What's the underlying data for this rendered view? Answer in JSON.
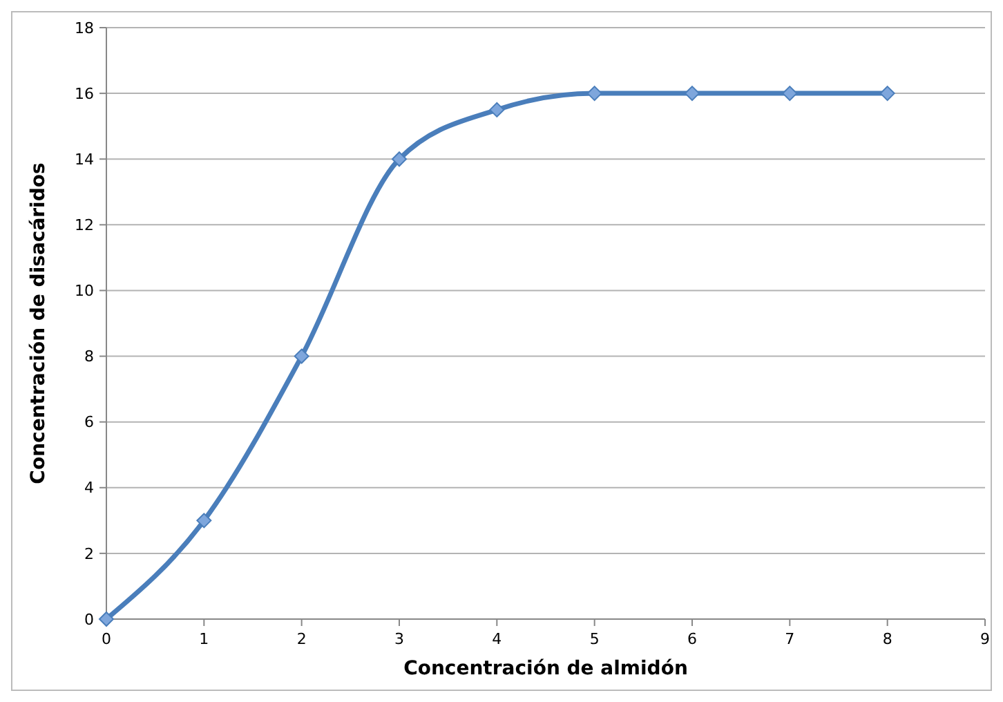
{
  "chart_data": {
    "type": "line",
    "xlabel": "Concentración de almidón",
    "ylabel": "Concentración de disacáridos",
    "x": [
      0,
      1,
      2,
      3,
      4,
      5,
      6,
      7,
      8
    ],
    "series": [
      {
        "color": "#4a7ebb",
        "values": [
          0,
          3,
          8,
          14,
          15.5,
          16,
          16,
          16,
          16
        ]
      }
    ],
    "xlim": [
      0,
      9
    ],
    "xticks": [
      0,
      1,
      2,
      3,
      4,
      5,
      6,
      7,
      8,
      9
    ],
    "ylim": [
      0,
      18
    ],
    "yticks": [
      0,
      2,
      4,
      6,
      8,
      10,
      12,
      14,
      16,
      18
    ],
    "grid": "y",
    "marker": "diamond",
    "line_style": "solid"
  }
}
